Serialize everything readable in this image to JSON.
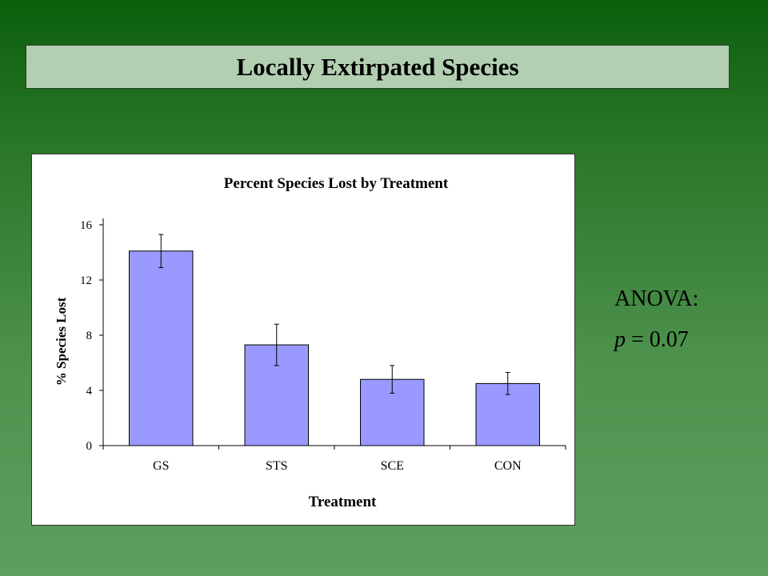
{
  "slide": {
    "title": "Locally Extirpated Species",
    "anova_label": "ANOVA:",
    "p_symbol": "p",
    "p_rest": " = 0.07"
  },
  "chart_data": {
    "type": "bar",
    "title": "Percent Species Lost by Treatment",
    "xlabel": "Treatment",
    "ylabel": "% Species Lost",
    "categories": [
      "GS",
      "STS",
      "SCE",
      "CON"
    ],
    "values": [
      14.1,
      7.3,
      4.8,
      4.5
    ],
    "error_low": [
      12.9,
      5.8,
      3.8,
      3.7
    ],
    "error_high": [
      15.3,
      8.8,
      5.8,
      5.3
    ],
    "ylim": [
      0,
      16
    ],
    "yticks": [
      0,
      4,
      8,
      12,
      16
    ],
    "grid": false,
    "legend": "none",
    "bar_color": "#9999ff",
    "bar_stroke": "#000000"
  }
}
